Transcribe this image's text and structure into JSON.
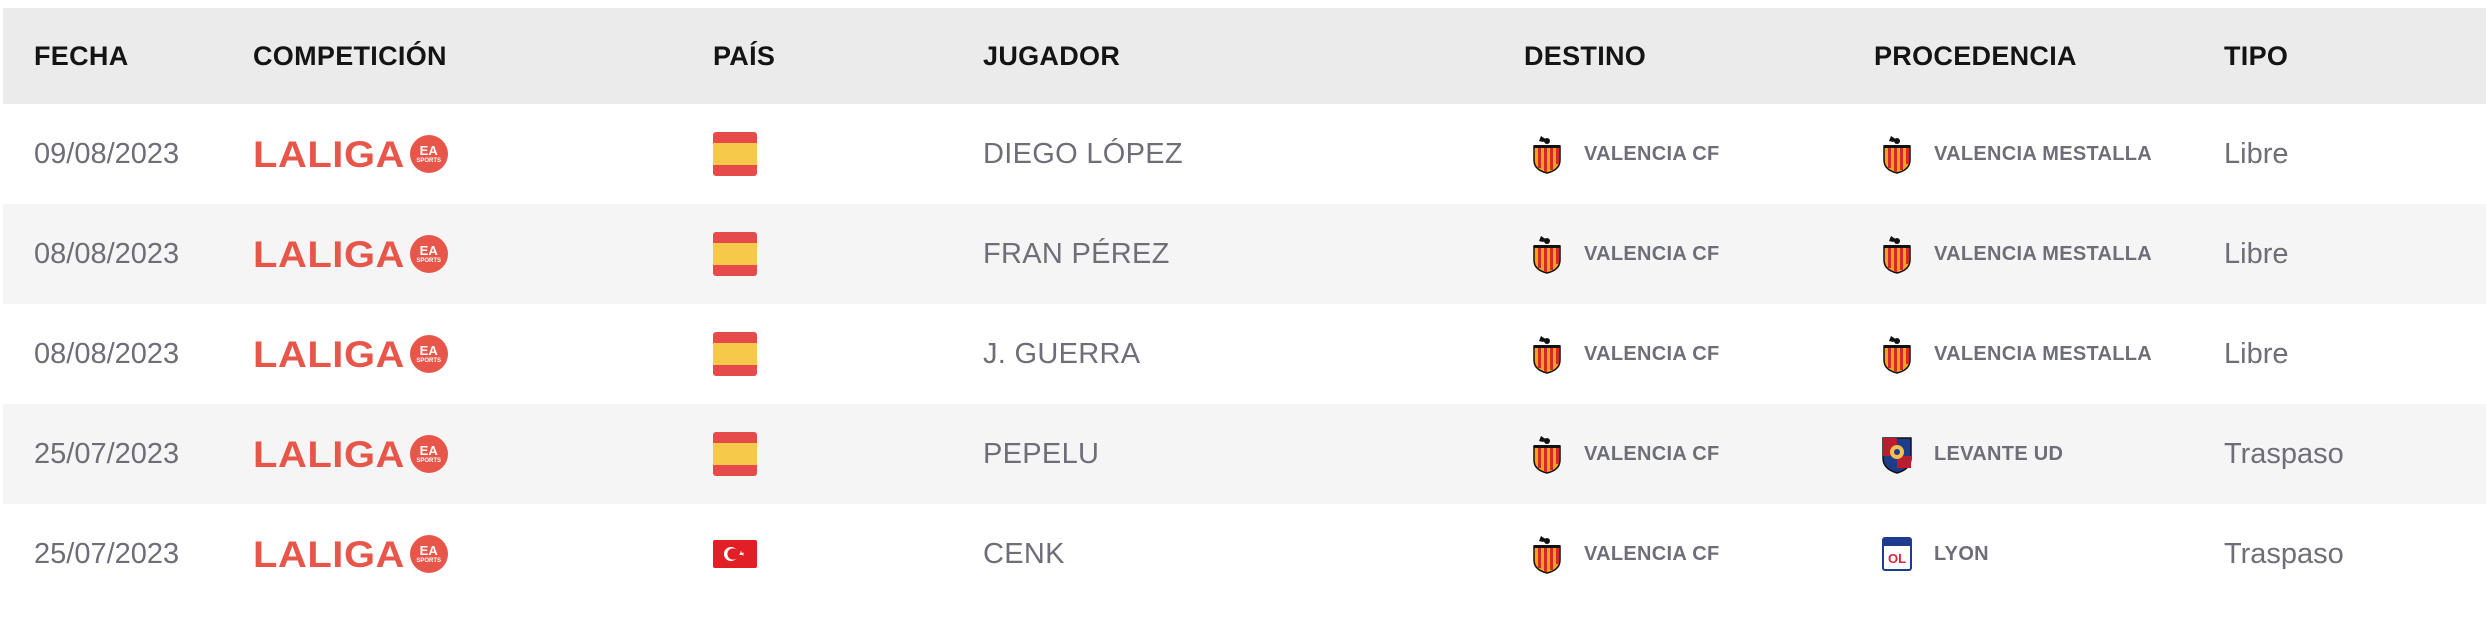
{
  "headers": {
    "fecha": "FECHA",
    "competicion": "COMPETICIÓN",
    "pais": "PAÍS",
    "jugador": "JUGADOR",
    "destino": "DESTINO",
    "procedencia": "PROCEDENCIA",
    "tipo": "TIPO"
  },
  "rows": [
    {
      "fecha": "09/08/2023",
      "competicion": "LALIGA",
      "pais_flag": "spain-flag",
      "jugador": "DIEGO LÓPEZ",
      "destino": "VALENCIA CF",
      "destino_icon": "valencia-crest",
      "procedencia": "VALENCIA MESTALLA",
      "procedencia_icon": "valencia-crest",
      "tipo": "Libre"
    },
    {
      "fecha": "08/08/2023",
      "competicion": "LALIGA",
      "pais_flag": "spain-flag",
      "jugador": "FRAN PÉREZ",
      "destino": "VALENCIA CF",
      "destino_icon": "valencia-crest",
      "procedencia": "VALENCIA MESTALLA",
      "procedencia_icon": "valencia-crest",
      "tipo": "Libre"
    },
    {
      "fecha": "08/08/2023",
      "competicion": "LALIGA",
      "pais_flag": "spain-flag",
      "jugador": "J. GUERRA",
      "destino": "VALENCIA CF",
      "destino_icon": "valencia-crest",
      "procedencia": "VALENCIA MESTALLA",
      "procedencia_icon": "valencia-crest",
      "tipo": "Libre"
    },
    {
      "fecha": "25/07/2023",
      "competicion": "LALIGA",
      "pais_flag": "spain-flag",
      "jugador": "PEPELU",
      "destino": "VALENCIA CF",
      "destino_icon": "valencia-crest",
      "procedencia": "LEVANTE UD",
      "procedencia_icon": "levante-crest",
      "tipo": "Traspaso"
    },
    {
      "fecha": "25/07/2023",
      "competicion": "LALIGA",
      "pais_flag": "turkey-flag",
      "jugador": "CENK",
      "destino": "VALENCIA CF",
      "destino_icon": "valencia-crest",
      "procedencia": "LYON",
      "procedencia_icon": "lyon-crest",
      "tipo": "Traspaso"
    }
  ],
  "colors": {
    "laliga": "#e8564a",
    "header_bg": "#ebebeb",
    "row_alt_bg": "#f5f5f5",
    "text_muted": "#6e6e78"
  }
}
